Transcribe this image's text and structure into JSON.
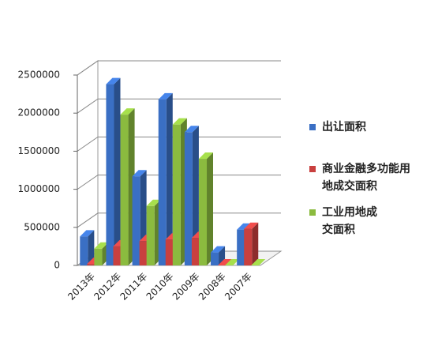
{
  "chart_data": {
    "type": "bar3d",
    "categories": [
      "2013年",
      "2012年",
      "2011年",
      "2010年",
      "2009年",
      "2008年",
      "2007年"
    ],
    "series": [
      {
        "name": "出让面积",
        "color": "#3a6fc4",
        "values": [
          380000,
          2380000,
          1170000,
          2180000,
          1750000,
          170000,
          470000
        ]
      },
      {
        "name": "商业金融多功能用地成交面积",
        "color": "#c9403f",
        "values": [
          20000,
          250000,
          320000,
          340000,
          360000,
          0,
          480000
        ]
      },
      {
        "name": "工业用地成交面积",
        "color": "#8bbb3f",
        "values": [
          220000,
          1980000,
          780000,
          1850000,
          1400000,
          0,
          0
        ]
      }
    ],
    "ylim": [
      0,
      2500000
    ],
    "yticks": [
      0,
      500000,
      1000000,
      1500000,
      2000000,
      2500000
    ],
    "grid": true
  }
}
